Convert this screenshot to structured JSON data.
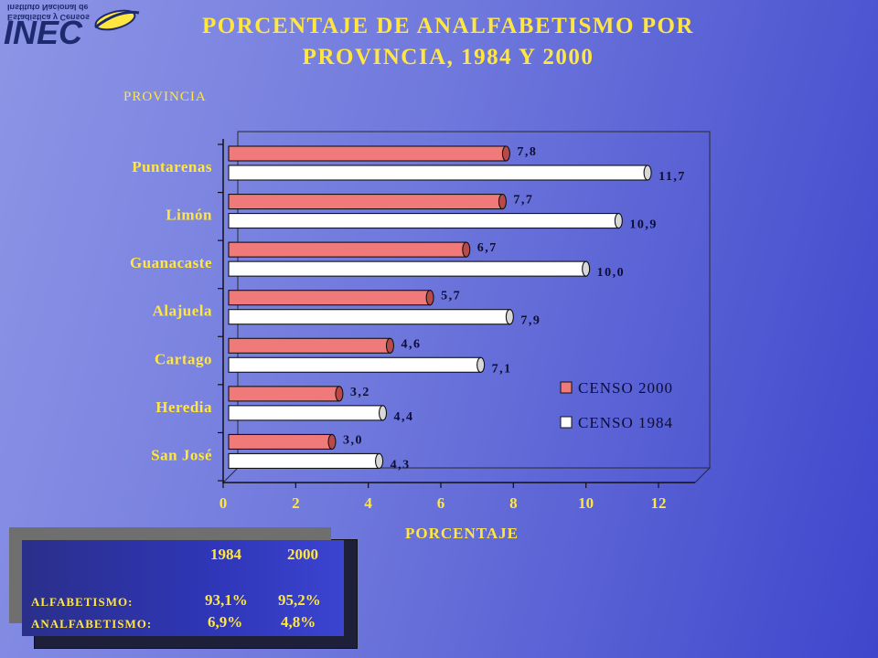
{
  "logo": {
    "text": "INEC",
    "small_line_1": "Instituto Nacional de",
    "small_line_2": "Estadística y Censos"
  },
  "header": {
    "title_line_1": "PORCENTAJE DE ANALFABETISMO POR",
    "title_line_2": "PROVINCIA, 1984 Y 2000"
  },
  "colors": {
    "series_2000": "#f07a7a",
    "series_1984": "#ffffff",
    "label_text": "#ffe640",
    "value_text": "#0d0d35"
  },
  "chart_data": {
    "type": "bar",
    "orientation": "horizontal",
    "three_d": true,
    "title": "PORCENTAJE DE ANALFABETISMO POR PROVINCIA, 1984 Y 2000",
    "ylabel": "PROVINCIA",
    "xlabel": "PORCENTAJE",
    "categories": [
      "Puntarenas",
      "Limón",
      "Guanacaste",
      "Alajuela",
      "Cartago",
      "Heredia",
      "San José"
    ],
    "series": [
      {
        "name": "CENSO 2000",
        "values": [
          7.8,
          7.7,
          6.7,
          5.7,
          4.6,
          3.2,
          3.0
        ],
        "labels": [
          "7,8",
          "7,7",
          "6,7",
          "5,7",
          "4,6",
          "3,2",
          "3,0"
        ]
      },
      {
        "name": "CENSO 1984",
        "values": [
          11.7,
          10.9,
          10.0,
          7.9,
          7.1,
          4.4,
          4.3
        ],
        "labels": [
          "11,7",
          "10,9",
          "10,0",
          "7,9",
          "7,1",
          "4,4",
          "4,3"
        ]
      }
    ],
    "xlim": [
      0,
      12
    ],
    "xticks": [
      "0",
      "2",
      "4",
      "6",
      "8",
      "10",
      "12"
    ],
    "legend_position": "lower-right",
    "grid": false
  },
  "stats_table": {
    "columns": [
      "1984",
      "2000"
    ],
    "rows": [
      {
        "label": "ALFABETISMO:",
        "values": [
          "93,1%",
          "95,2%"
        ]
      },
      {
        "label": "ANALFABETISMO:",
        "values": [
          "6,9%",
          "4,8%"
        ]
      }
    ]
  }
}
